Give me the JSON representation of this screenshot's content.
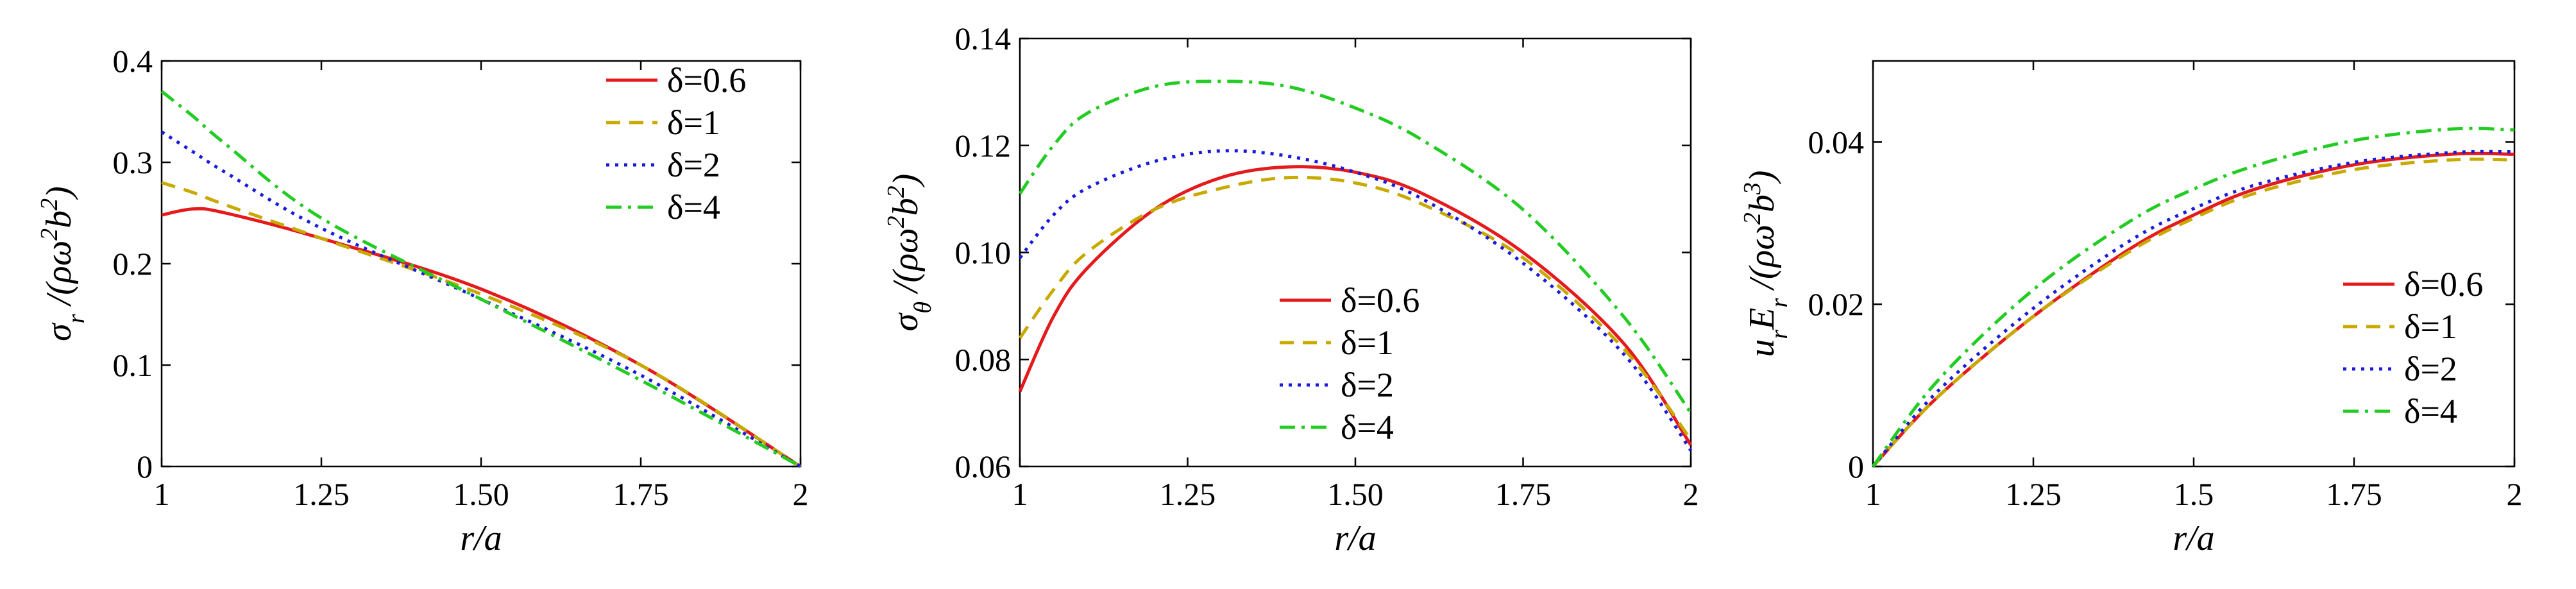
{
  "chart_data": [
    {
      "type": "line",
      "xlabel": "r/a",
      "ylabel": "σ_r /(ρω²b²)",
      "ylabel_parts": {
        "sym": "σ",
        "sub": "r",
        "rest": " /(ρω",
        "sup1": "2",
        "mid": "b",
        "sup2": "2",
        "end": ")"
      },
      "xlim": [
        1,
        2
      ],
      "ylim": [
        0,
        0.4
      ],
      "xticks": [
        1,
        1.25,
        1.5,
        1.75,
        2
      ],
      "xtick_labels": [
        "1",
        "1.25",
        "1.50",
        "1.75",
        "2"
      ],
      "yticks": [
        0,
        0.1,
        0.2,
        0.3,
        0.4
      ],
      "ytick_labels": [
        "0",
        "0.1",
        "0.2",
        "0.3",
        "0.4"
      ],
      "legend": "top-right",
      "grid": false,
      "x": [
        1.0,
        1.05,
        1.1,
        1.25,
        1.5,
        1.75,
        2.0
      ],
      "series": [
        {
          "name": "δ=0.6",
          "color": "#e41a1c",
          "dash": "solid",
          "values": [
            0.248,
            0.254,
            0.25,
            0.225,
            0.175,
            0.1,
            0.0
          ]
        },
        {
          "name": "δ=1",
          "color": "#c8a900",
          "dash": "dashed",
          "values": [
            0.28,
            0.27,
            0.258,
            0.225,
            0.17,
            0.1,
            0.0
          ]
        },
        {
          "name": "δ=2",
          "color": "#1a1adc",
          "dash": "dotted",
          "values": [
            0.33,
            0.31,
            0.29,
            0.235,
            0.165,
            0.09,
            0.0
          ]
        },
        {
          "name": "δ=4",
          "color": "#22cc22",
          "dash": "dashdot",
          "values": [
            0.37,
            0.345,
            0.318,
            0.245,
            0.165,
            0.085,
            0.0
          ]
        }
      ]
    },
    {
      "type": "line",
      "xlabel": "r/a",
      "ylabel": "σ_θ /(ρω²b²)",
      "ylabel_parts": {
        "sym": "σ",
        "sub": "θ",
        "rest": " /(ρω",
        "sup1": "2",
        "mid": "b",
        "sup2": "2",
        "end": ")"
      },
      "xlim": [
        1,
        2
      ],
      "ylim": [
        0.06,
        0.14
      ],
      "xticks": [
        1,
        1.25,
        1.5,
        1.75,
        2
      ],
      "xtick_labels": [
        "1",
        "1.25",
        "1.50",
        "1.75",
        "2"
      ],
      "yticks": [
        0.06,
        0.08,
        0.1,
        0.12,
        0.14
      ],
      "ytick_labels": [
        "0.06",
        "0.08",
        "0.10",
        "0.12",
        "0.14"
      ],
      "legend": "center",
      "grid": false,
      "x": [
        1.0,
        1.05,
        1.1,
        1.2,
        1.3,
        1.4,
        1.5,
        1.6,
        1.75,
        1.9,
        2.0
      ],
      "series": [
        {
          "name": "δ=0.6",
          "color": "#e41a1c",
          "dash": "solid",
          "values": [
            0.074,
            0.088,
            0.097,
            0.108,
            0.114,
            0.116,
            0.115,
            0.111,
            0.1,
            0.083,
            0.064
          ]
        },
        {
          "name": "δ=1",
          "color": "#c8a900",
          "dash": "dashed",
          "values": [
            0.084,
            0.093,
            0.1,
            0.108,
            0.112,
            0.114,
            0.113,
            0.109,
            0.099,
            0.082,
            0.065
          ]
        },
        {
          "name": "δ=2",
          "color": "#1a1adc",
          "dash": "dotted",
          "values": [
            0.099,
            0.107,
            0.112,
            0.117,
            0.119,
            0.118,
            0.115,
            0.11,
            0.098,
            0.081,
            0.063
          ]
        },
        {
          "name": "δ=4",
          "color": "#22cc22",
          "dash": "dashdot",
          "values": [
            0.111,
            0.12,
            0.126,
            0.131,
            0.132,
            0.131,
            0.127,
            0.121,
            0.108,
            0.088,
            0.07
          ]
        }
      ]
    },
    {
      "type": "line",
      "xlabel": "r/a",
      "ylabel": "u_r E_r /(ρω²b³)",
      "ylabel_parts": {
        "sym": "u",
        "sub": "r",
        "rest": "E",
        "sub2": "r",
        "rest2": " /(ρω",
        "sup1": "2",
        "mid": "b",
        "sup2": "3",
        "end": ")"
      },
      "xlim": [
        1,
        2
      ],
      "ylim": [
        0,
        0.05
      ],
      "xticks": [
        1,
        1.25,
        1.5,
        1.75,
        2
      ],
      "xtick_labels": [
        "1",
        "1.25",
        "1.5",
        "1.75",
        "2"
      ],
      "yticks": [
        0,
        0.02,
        0.04
      ],
      "ytick_labels": [
        "0",
        "0.02",
        "0.04"
      ],
      "legend": "bottom-right",
      "grid": false,
      "x": [
        1.0,
        1.1,
        1.25,
        1.4,
        1.5,
        1.6,
        1.75,
        1.9,
        2.0
      ],
      "series": [
        {
          "name": "δ=0.6",
          "color": "#e41a1c",
          "dash": "solid",
          "values": [
            0.0,
            0.0085,
            0.0185,
            0.0268,
            0.031,
            0.0343,
            0.0372,
            0.0385,
            0.0385
          ]
        },
        {
          "name": "δ=1",
          "color": "#c8a900",
          "dash": "dashed",
          "values": [
            0.0,
            0.0085,
            0.0185,
            0.0265,
            0.0306,
            0.0338,
            0.0366,
            0.0378,
            0.0378
          ]
        },
        {
          "name": "δ=2",
          "color": "#1a1adc",
          "dash": "dotted",
          "values": [
            0.0,
            0.0092,
            0.0195,
            0.0278,
            0.0318,
            0.0348,
            0.0375,
            0.0387,
            0.0388
          ]
        },
        {
          "name": "δ=4",
          "color": "#22cc22",
          "dash": "dashdot",
          "values": [
            0.0,
            0.0105,
            0.0218,
            0.0302,
            0.0342,
            0.0372,
            0.0402,
            0.0416,
            0.0415
          ]
        }
      ]
    }
  ]
}
